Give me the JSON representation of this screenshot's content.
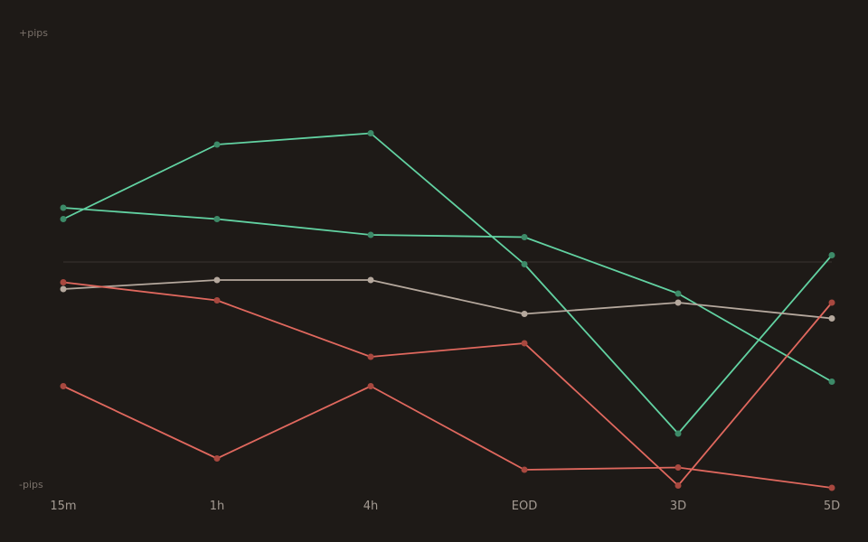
{
  "chart_data": {
    "type": "line",
    "title": "",
    "xlabel": "",
    "ylabel": "",
    "y_top_label": "+pips",
    "y_bottom_label": "-pips",
    "categories": [
      "15m",
      "1h",
      "4h",
      "EOD",
      "3D",
      "5D"
    ],
    "ylim": [
      -100,
      100
    ],
    "baseline": 0,
    "grid": false,
    "legend": "none",
    "series": [
      {
        "color": "#62d2a2",
        "marker_color": "#3d8a68",
        "values": [
          19,
          52,
          57,
          -1,
          -76,
          3
        ]
      },
      {
        "color": "#62d2a2",
        "marker_color": "#3d8a68",
        "values": [
          24,
          19,
          12,
          11,
          -14,
          -53
        ]
      },
      {
        "color": "#b5a89d",
        "marker_color": "#b5a89d",
        "values": [
          -12,
          -8,
          -8,
          -23,
          -18,
          -25
        ]
      },
      {
        "color": "#e0685e",
        "marker_color": "#a8483f",
        "values": [
          -9,
          -17,
          -42,
          -36,
          -99,
          -18
        ]
      },
      {
        "color": "#e0685e",
        "marker_color": "#a8483f",
        "values": [
          -55,
          -87,
          -55,
          -92,
          -91,
          -100
        ]
      }
    ],
    "colors": {
      "background": "#1e1a17",
      "baseline": "#3a3430",
      "tick_text": "#a39a92",
      "axis_text": "#7a716a"
    }
  }
}
